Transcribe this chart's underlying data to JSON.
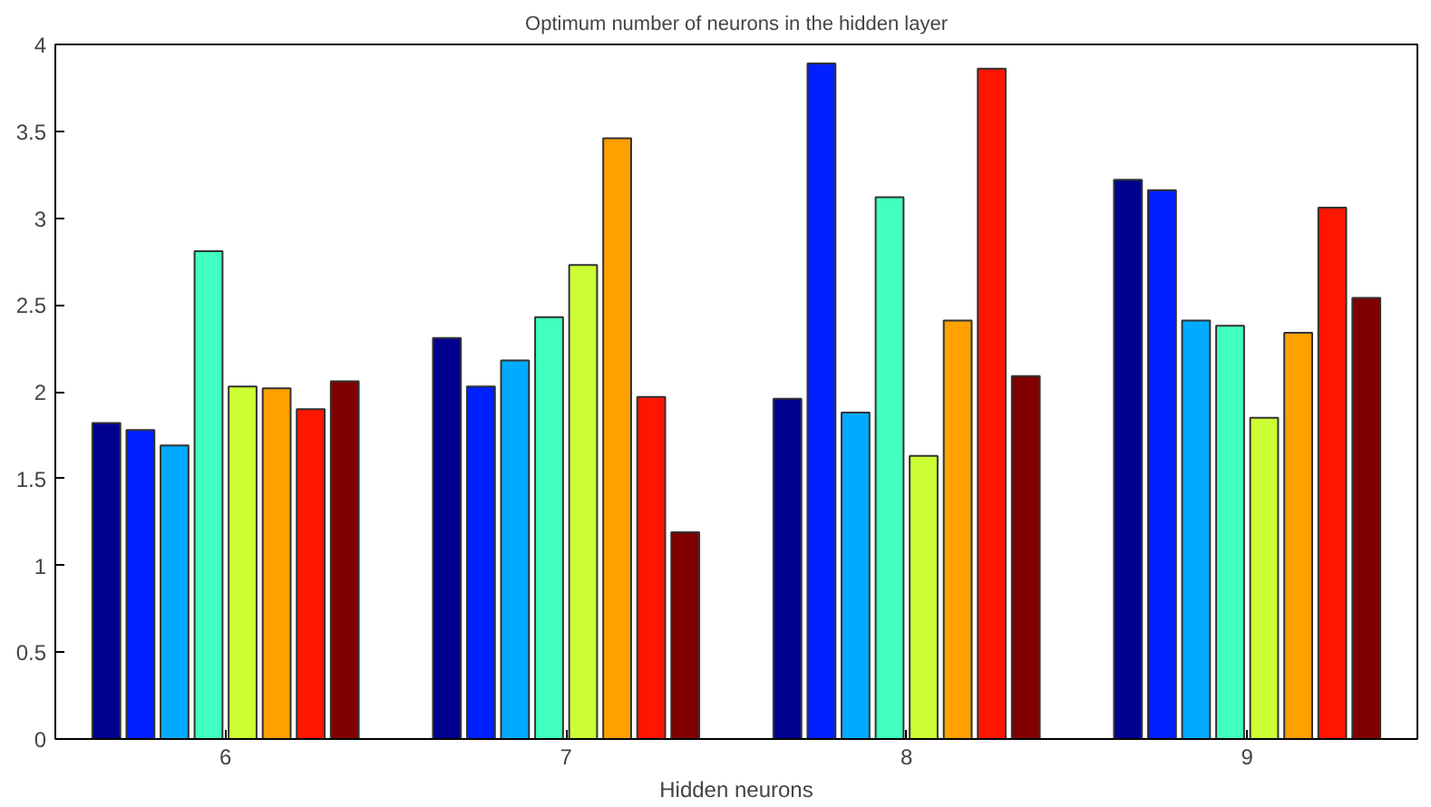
{
  "chart_data": {
    "type": "bar",
    "title": "Optimum number of neurons in the hidden layer",
    "xlabel": "Hidden neurons",
    "categories": [
      "6",
      "7",
      "8",
      "9"
    ],
    "series": [
      {
        "color": "#00008f",
        "values": [
          1.82,
          2.31,
          1.96,
          3.22
        ]
      },
      {
        "color": "#0020ff",
        "values": [
          1.78,
          2.03,
          3.89,
          3.16
        ]
      },
      {
        "color": "#00aaff",
        "values": [
          1.69,
          2.18,
          1.88,
          2.41
        ]
      },
      {
        "color": "#40ffc0",
        "values": [
          2.81,
          2.43,
          3.12,
          2.38
        ]
      },
      {
        "color": "#ccff33",
        "values": [
          2.03,
          2.73,
          1.63,
          1.85
        ]
      },
      {
        "color": "#ffa000",
        "values": [
          2.02,
          3.46,
          2.41,
          2.34
        ]
      },
      {
        "color": "#ff1500",
        "values": [
          1.9,
          1.97,
          3.86,
          3.06
        ]
      },
      {
        "color": "#800000",
        "values": [
          2.06,
          1.19,
          2.09,
          2.54
        ]
      }
    ],
    "ylim": [
      0,
      4
    ],
    "yticks": [
      0,
      0.5,
      1,
      1.5,
      2,
      2.5,
      3,
      3.5,
      4
    ],
    "grid": false
  }
}
